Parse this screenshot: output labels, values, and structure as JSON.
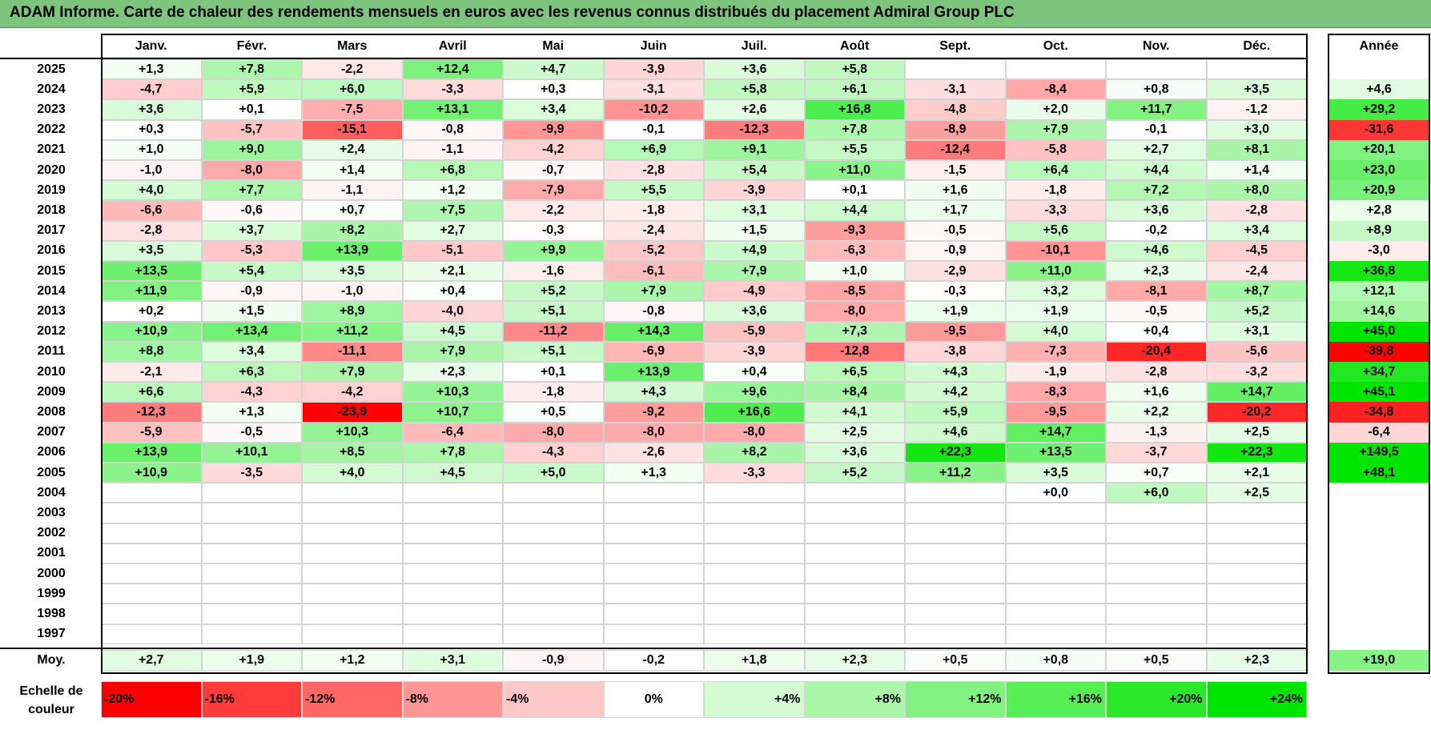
{
  "title": "ADAM Informe. Carte de chaleur des rendements mensuels en euros avec les revenus connus distribués du placement Admiral Group PLC",
  "chart_data": {
    "type": "heatmap",
    "title": "ADAM Informe. Carte de chaleur des rendements mensuels en euros avec les revenus connus distribués du placement Admiral Group PLC",
    "columns": [
      "Janv.",
      "Févr.",
      "Mars",
      "Avril",
      "Mai",
      "Juin",
      "Juil.",
      "Août",
      "Sept.",
      "Oct.",
      "Nov.",
      "Déc."
    ],
    "year_column_label": "Année",
    "rows": [
      {
        "year": "2025",
        "values": [
          "+1,3",
          "+7,8",
          "-2,2",
          "+12,4",
          "+4,7",
          "-3,9",
          "+3,6",
          "+5,8",
          "",
          "",
          "",
          ""
        ],
        "annual": ""
      },
      {
        "year": "2024",
        "values": [
          "-4,7",
          "+5,9",
          "+6,0",
          "-3,3",
          "+0,3",
          "-3,1",
          "+5,8",
          "+6,1",
          "-3,1",
          "-8,4",
          "+0,8",
          "+3,5"
        ],
        "annual": "+4,6"
      },
      {
        "year": "2023",
        "values": [
          "+3,6",
          "+0,1",
          "-7,5",
          "+13,1",
          "+3,4",
          "-10,2",
          "+2,6",
          "+16,8",
          "-4,8",
          "+2,0",
          "+11,7",
          "-1,2"
        ],
        "annual": "+29,2"
      },
      {
        "year": "2022",
        "values": [
          "+0,3",
          "-5,7",
          "-15,1",
          "-0,8",
          "-9,9",
          "-0,1",
          "-12,3",
          "+7,8",
          "-8,9",
          "+7,9",
          "-0,1",
          "+3,0"
        ],
        "annual": "-31,6"
      },
      {
        "year": "2021",
        "values": [
          "+1,0",
          "+9,0",
          "+2,4",
          "-1,1",
          "-4,2",
          "+6,9",
          "+9,1",
          "+5,5",
          "-12,4",
          "-5,8",
          "+2,7",
          "+8,1"
        ],
        "annual": "+20,1"
      },
      {
        "year": "2020",
        "values": [
          "-1,0",
          "-8,0",
          "+1,4",
          "+6,8",
          "-0,7",
          "-2,8",
          "+5,4",
          "+11,0",
          "-1,5",
          "+6,4",
          "+4,4",
          "+1,4"
        ],
        "annual": "+23,0"
      },
      {
        "year": "2019",
        "values": [
          "+4,0",
          "+7,7",
          "-1,1",
          "+1,2",
          "-7,9",
          "+5,5",
          "-3,9",
          "+0,1",
          "+1,6",
          "-1,8",
          "+7,2",
          "+8,0"
        ],
        "annual": "+20,9"
      },
      {
        "year": "2018",
        "values": [
          "-6,6",
          "-0,6",
          "+0,7",
          "+7,5",
          "-2,2",
          "-1,8",
          "+3,1",
          "+4,4",
          "+1,7",
          "-3,3",
          "+3,6",
          "-2,8"
        ],
        "annual": "+2,8"
      },
      {
        "year": "2017",
        "values": [
          "-2,8",
          "+3,7",
          "+8,2",
          "+2,7",
          "-0,3",
          "-2,4",
          "+1,5",
          "-9,3",
          "-0,5",
          "+5,6",
          "-0,2",
          "+3,4"
        ],
        "annual": "+8,9"
      },
      {
        "year": "2016",
        "values": [
          "+3,5",
          "-5,3",
          "+13,9",
          "-5,1",
          "+9,9",
          "-5,2",
          "+4,9",
          "-6,3",
          "-0,9",
          "-10,1",
          "+4,6",
          "-4,5"
        ],
        "annual": "-3,0"
      },
      {
        "year": "2015",
        "values": [
          "+13,5",
          "+5,4",
          "+3,5",
          "+2,1",
          "-1,6",
          "-6,1",
          "+7,9",
          "+1,0",
          "-2,9",
          "+11,0",
          "+2,3",
          "-2,4"
        ],
        "annual": "+36,8"
      },
      {
        "year": "2014",
        "values": [
          "+11,9",
          "-0,9",
          "-1,0",
          "+0,4",
          "+5,2",
          "+7,9",
          "-4,9",
          "-8,5",
          "-0,3",
          "+3,2",
          "-8,1",
          "+8,7"
        ],
        "annual": "+12,1"
      },
      {
        "year": "2013",
        "values": [
          "+0,2",
          "+1,5",
          "+8,9",
          "-4,0",
          "+5,1",
          "-0,8",
          "+3,6",
          "-8,0",
          "+1,9",
          "+1,9",
          "-0,5",
          "+5,2"
        ],
        "annual": "+14,6"
      },
      {
        "year": "2012",
        "values": [
          "+10,9",
          "+13,4",
          "+11,2",
          "+4,5",
          "-11,2",
          "+14,3",
          "-5,9",
          "+7,3",
          "-9,5",
          "+4,0",
          "+0,4",
          "+3,1"
        ],
        "annual": "+45,0"
      },
      {
        "year": "2011",
        "values": [
          "+8,8",
          "+3,4",
          "-11,1",
          "+7,9",
          "+5,1",
          "-6,9",
          "-3,9",
          "-12,8",
          "-3,8",
          "-7,3",
          "-20,4",
          "-5,6"
        ],
        "annual": "-39,8"
      },
      {
        "year": "2010",
        "values": [
          "-2,1",
          "+6,3",
          "+7,9",
          "+2,3",
          "+0,1",
          "+13,9",
          "+0,4",
          "+6,5",
          "+4,3",
          "-1,9",
          "-2,8",
          "-3,2"
        ],
        "annual": "+34,7"
      },
      {
        "year": "2009",
        "values": [
          "+6,6",
          "-4,3",
          "-4,2",
          "+10,3",
          "-1,8",
          "+4,3",
          "+9,6",
          "+8,4",
          "+4,2",
          "-8,3",
          "+1,6",
          "+14,7"
        ],
        "annual": "+45,1"
      },
      {
        "year": "2008",
        "values": [
          "-12,3",
          "+1,3",
          "-23,9",
          "+10,7",
          "+0,5",
          "-9,2",
          "+16,6",
          "+4,1",
          "+5,9",
          "-9,5",
          "+2,2",
          "-20,2"
        ],
        "annual": "-34,8"
      },
      {
        "year": "2007",
        "values": [
          "-5,9",
          "-0,5",
          "+10,3",
          "-6,4",
          "-8,0",
          "-8,0",
          "-8,0",
          "+2,5",
          "+4,6",
          "+14,7",
          "-1,3",
          "+2,5"
        ],
        "annual": "-6,4"
      },
      {
        "year": "2006",
        "values": [
          "+13,9",
          "+10,1",
          "+8,5",
          "+7,8",
          "-4,3",
          "-2,6",
          "+8,2",
          "+3,6",
          "+22,3",
          "+13,5",
          "-3,7",
          "+22,3"
        ],
        "annual": "+149,5"
      },
      {
        "year": "2005",
        "values": [
          "+10,9",
          "-3,5",
          "+4,0",
          "+4,5",
          "+5,0",
          "+1,3",
          "-3,3",
          "+5,2",
          "+11,2",
          "+3,5",
          "+0,7",
          "+2,1"
        ],
        "annual": "+48,1"
      },
      {
        "year": "2004",
        "values": [
          "",
          "",
          "",
          "",
          "",
          "",
          "",
          "",
          "",
          "+0,0",
          "+6,0",
          "+2,5"
        ],
        "annual": ""
      },
      {
        "year": "2003",
        "values": [
          "",
          "",
          "",
          "",
          "",
          "",
          "",
          "",
          "",
          "",
          "",
          ""
        ],
        "annual": ""
      },
      {
        "year": "2002",
        "values": [
          "",
          "",
          "",
          "",
          "",
          "",
          "",
          "",
          "",
          "",
          "",
          ""
        ],
        "annual": ""
      },
      {
        "year": "2001",
        "values": [
          "",
          "",
          "",
          "",
          "",
          "",
          "",
          "",
          "",
          "",
          "",
          ""
        ],
        "annual": ""
      },
      {
        "year": "2000",
        "values": [
          "",
          "",
          "",
          "",
          "",
          "",
          "",
          "",
          "",
          "",
          "",
          ""
        ],
        "annual": ""
      },
      {
        "year": "1999",
        "values": [
          "",
          "",
          "",
          "",
          "",
          "",
          "",
          "",
          "",
          "",
          "",
          ""
        ],
        "annual": ""
      },
      {
        "year": "1998",
        "values": [
          "",
          "",
          "",
          "",
          "",
          "",
          "",
          "",
          "",
          "",
          "",
          ""
        ],
        "annual": ""
      },
      {
        "year": "1997",
        "values": [
          "",
          "",
          "",
          "",
          "",
          "",
          "",
          "",
          "",
          "",
          "",
          ""
        ],
        "annual": ""
      }
    ],
    "average": {
      "label": "Moy.",
      "values": [
        "+2,7",
        "+1,9",
        "+1,2",
        "+3,1",
        "-0,9",
        "-0,2",
        "+1,8",
        "+2,3",
        "+0,5",
        "+0,8",
        "+0,5",
        "+2,3"
      ],
      "annual": "+19,0"
    },
    "color_scale": {
      "label": "Echelle de couleur",
      "stops": [
        {
          "label": "-20%",
          "value": -20,
          "color": "#ff0000"
        },
        {
          "label": "-16%",
          "value": -16,
          "color": "#ff3b3b"
        },
        {
          "label": "-12%",
          "value": -12,
          "color": "#ff6767"
        },
        {
          "label": "-8%",
          "value": -8,
          "color": "#ff9696"
        },
        {
          "label": "-4%",
          "value": -4,
          "color": "#ffc8c8"
        },
        {
          "label": "0%",
          "value": 0,
          "color": "#ffffff"
        },
        {
          "label": "+4%",
          "value": 4,
          "color": "#d5fbd5"
        },
        {
          "label": "+8%",
          "value": 8,
          "color": "#aaf7aa"
        },
        {
          "label": "+12%",
          "value": 12,
          "color": "#7ff27f"
        },
        {
          "label": "+16%",
          "value": 16,
          "color": "#55ee55"
        },
        {
          "label": "+20%",
          "value": 20,
          "color": "#2ae92a"
        },
        {
          "label": "+24%",
          "value": 24,
          "color": "#00e500"
        }
      ]
    }
  }
}
